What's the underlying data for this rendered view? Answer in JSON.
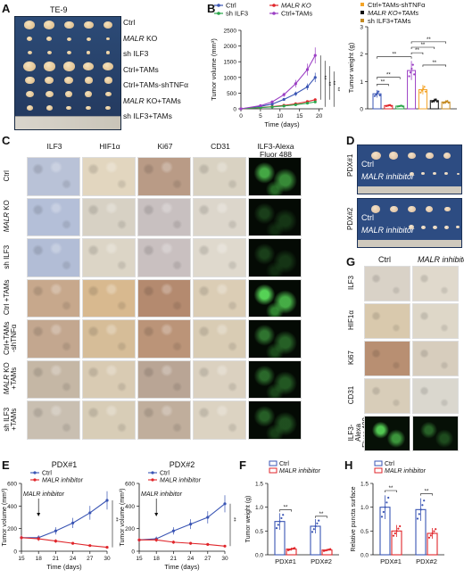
{
  "panels": {
    "A": {
      "letter": "A",
      "title": "TE-9",
      "rows": [
        "Ctrl",
        "MALR KO",
        "sh ILF3",
        "Ctrl+TAMs",
        "Ctrl+TAMs-shTNFα",
        "MALR KO+TAMs",
        "sh ILF3+TAMs"
      ],
      "italic_prefix": [
        "",
        "MALR",
        "",
        "",
        "",
        "MALR",
        ""
      ]
    },
    "B": {
      "letter": "B"
    },
    "C": {
      "letter": "C",
      "cols": [
        "ILF3",
        "HIF1α",
        "Ki67",
        "CD31",
        "ILF3-Alexa Fluor 488"
      ],
      "rows": [
        "Ctrl",
        "MALR KO",
        "sh ILF3",
        "Ctrl +TAMs",
        "Ctrl+TAMs -shTNFα",
        "MALR KO +TAMs",
        "sh ILF3 +TAMs"
      ]
    },
    "D": {
      "letter": "D",
      "pdx1": "PDX#1",
      "pdx2": "PDX#2",
      "ctrl": "Ctrl",
      "inhib": "MALR inhibitor"
    },
    "E": {
      "letter": "E"
    },
    "F": {
      "letter": "F"
    },
    "G": {
      "letter": "G",
      "col1": "Ctrl",
      "col2": "MALR inhibitor",
      "rows": [
        "ILF3",
        "HIF1α",
        "Ki67",
        "CD31",
        "ILF3-Alexa Fluor 488"
      ]
    },
    "H": {
      "letter": "H"
    }
  },
  "chart_data": [
    {
      "id": "B1",
      "type": "line",
      "xlabel": "Time (days)",
      "ylabel": "Tumor volume (mm³)",
      "x": [
        0,
        5,
        8,
        11,
        14,
        17,
        19
      ],
      "xticks": [
        0,
        5,
        10,
        15,
        20
      ],
      "yticks": [
        0,
        500,
        1000,
        1500,
        2000,
        2500
      ],
      "xlim": [
        0,
        21
      ],
      "ylim": [
        0,
        2500
      ],
      "series": [
        {
          "name": "Ctrl",
          "color": "#3a55b4",
          "values": [
            0,
            80,
            150,
            300,
            480,
            700,
            1000
          ]
        },
        {
          "name": "MALR KO",
          "color": "#e0262b",
          "values": [
            0,
            40,
            70,
            110,
            160,
            230,
            290
          ]
        },
        {
          "name": "sh ILF3",
          "color": "#2aa64a",
          "values": [
            0,
            40,
            60,
            90,
            130,
            180,
            220
          ]
        },
        {
          "name": "Ctrl+TAMs",
          "color": "#9b3fc4",
          "values": [
            0,
            100,
            220,
            450,
            800,
            1250,
            1700
          ]
        }
      ],
      "sig": [
        "**",
        "**",
        "**",
        "**"
      ]
    },
    {
      "id": "B2",
      "type": "bar",
      "ylabel": "Tumor weight (g)",
      "yticks": [
        0,
        1,
        2,
        3
      ],
      "ylim": [
        0,
        3
      ],
      "legend": [
        "Ctrl+TAMs-shTNFα",
        "MALR KO+TAMs",
        "sh ILF3+TAMs"
      ],
      "legend_colors": [
        "#f4a428",
        "#111111",
        "#c48a22"
      ],
      "values": [
        0.55,
        0.12,
        0.1,
        1.4,
        0.7,
        0.3,
        0.25
      ],
      "colors": [
        "#3a55b4",
        "#e0262b",
        "#2aa64a",
        "#9b3fc4",
        "#f4a428",
        "#111111",
        "#c48a22"
      ],
      "sig": [
        "**",
        "**",
        "**",
        "**",
        "**",
        "**",
        "**"
      ]
    },
    {
      "id": "E1",
      "type": "line",
      "title": "PDX#1",
      "xlabel": "Time (days)",
      "ylabel": "Tumor volume (mm³)",
      "x": [
        15,
        18,
        21,
        24,
        27,
        30
      ],
      "xticks": [
        15,
        18,
        21,
        24,
        27,
        30
      ],
      "yticks": [
        0,
        200,
        400,
        600
      ],
      "ylim": [
        0,
        600
      ],
      "annotation": "MALR inhibitor",
      "annotation_x": 18,
      "legend": [
        "Ctrl",
        "MALR inhibitor"
      ],
      "series": [
        {
          "name": "Ctrl",
          "color": "#3a55b4",
          "values": [
            120,
            120,
            180,
            250,
            340,
            450
          ]
        },
        {
          "name": "MALR inhibitor",
          "color": "#e0262b",
          "values": [
            120,
            110,
            90,
            70,
            50,
            35
          ]
        }
      ],
      "sig": "**"
    },
    {
      "id": "E2",
      "type": "line",
      "title": "PDX#2",
      "xlabel": "Time (days)",
      "ylabel": "Tumor volume (mm³)",
      "x": [
        15,
        18,
        21,
        24,
        27,
        30
      ],
      "xticks": [
        15,
        18,
        21,
        24,
        27,
        30
      ],
      "yticks": [
        0,
        200,
        400,
        600
      ],
      "ylim": [
        0,
        600
      ],
      "annotation": "MALR inhibitor",
      "annotation_x": 18,
      "legend": [
        "Ctrl",
        "MALR inhibitor"
      ],
      "series": [
        {
          "name": "Ctrl",
          "color": "#3a55b4",
          "values": [
            100,
            110,
            180,
            240,
            300,
            420
          ]
        },
        {
          "name": "MALR inhibitor",
          "color": "#e0262b",
          "values": [
            100,
            100,
            80,
            70,
            60,
            45
          ]
        }
      ],
      "sig": "**"
    },
    {
      "id": "F",
      "type": "bar",
      "ylabel": "Tumor weight (g)",
      "categories": [
        "PDX#1",
        "PDX#2"
      ],
      "yticks": [
        0.0,
        0.5,
        1.0,
        1.5
      ],
      "ylim": [
        0,
        1.5
      ],
      "legend": [
        "Ctrl",
        "MALR inhibitor"
      ],
      "series": [
        {
          "name": "Ctrl",
          "color": "#3a55b4",
          "values": [
            0.7,
            0.6
          ]
        },
        {
          "name": "MALR inhibitor",
          "color": "#e0262b",
          "values": [
            0.12,
            0.1
          ]
        }
      ],
      "sig": [
        "**",
        "**"
      ]
    },
    {
      "id": "H",
      "type": "bar",
      "ylabel": "Relative puncta surface",
      "categories": [
        "PDX#1",
        "PDX#2"
      ],
      "yticks": [
        0.0,
        0.5,
        1.0,
        1.5
      ],
      "ylim": [
        0,
        1.5
      ],
      "legend": [
        "Ctrl",
        "MALR inhibitor"
      ],
      "series": [
        {
          "name": "Ctrl",
          "color": "#3a55b4",
          "values": [
            1.0,
            0.95
          ]
        },
        {
          "name": "MALR inhibitor",
          "color": "#e0262b",
          "values": [
            0.5,
            0.45
          ]
        }
      ],
      "sig": [
        "**",
        "**"
      ]
    }
  ]
}
